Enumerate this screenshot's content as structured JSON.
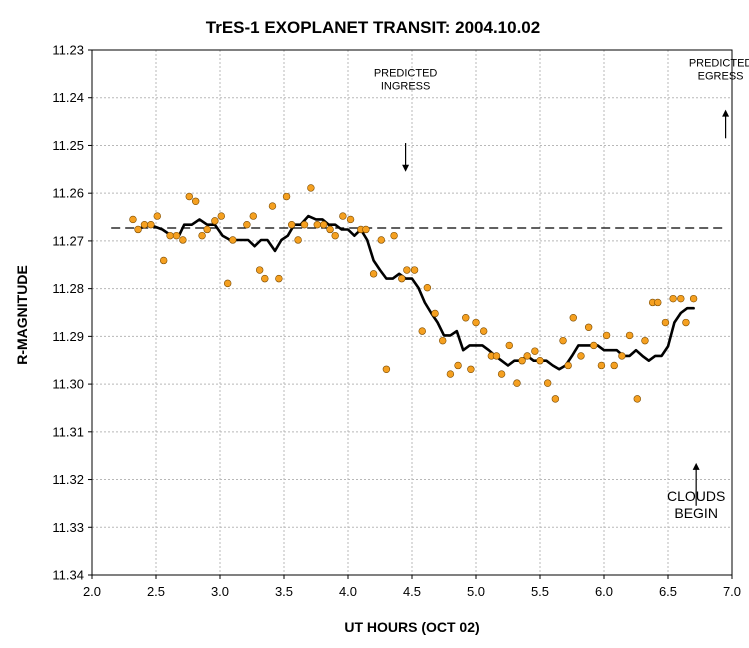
{
  "chart_data": {
    "type": "scatter",
    "title": "TrES-1 EXOPLANET TRANSIT: 2004.10.02",
    "xlabel": "UT HOURS (OCT 02)",
    "ylabel": "R-MAGNITUDE",
    "xlim": [
      2.0,
      7.0
    ],
    "ylim": [
      11.23,
      11.34
    ],
    "y_inverted": true,
    "grid": true,
    "x_ticks": [
      2.0,
      2.5,
      3.0,
      3.5,
      4.0,
      4.5,
      5.0,
      5.5,
      6.0,
      6.5,
      7.0
    ],
    "x_tick_labels": [
      "2.0",
      "2.5",
      "3.0",
      "3.5",
      "4.0",
      "4.5",
      "5.0",
      "5.5",
      "6.0",
      "6.5",
      "7.0"
    ],
    "y_ticks": [
      11.23,
      11.24,
      11.25,
      11.26,
      11.27,
      11.28,
      11.29,
      11.3,
      11.31,
      11.32,
      11.33,
      11.34
    ],
    "y_tick_labels": [
      "11.23",
      "11.24",
      "11.25",
      "11.26",
      "11.27",
      "11.28",
      "11.29",
      "11.30",
      "11.31",
      "11.32",
      "11.33",
      "11.34"
    ],
    "colors": {
      "points": "#f5a020",
      "point_edge": "#7a4a00",
      "smooth_line": "#000000",
      "baseline": "#000000",
      "grid": "#b8b8b8"
    },
    "series": [
      {
        "type": "scatter",
        "x": [
          2.32,
          2.36,
          2.41,
          2.46,
          2.51,
          2.56,
          2.61,
          2.66,
          2.71,
          2.76,
          2.81,
          2.86,
          2.9,
          2.96,
          3.01,
          3.06,
          3.1,
          3.21,
          3.26,
          3.31,
          3.35,
          3.41,
          3.46,
          3.52,
          3.56,
          3.61,
          3.66,
          3.71,
          3.76,
          3.81,
          3.86,
          3.9,
          3.96,
          4.02,
          4.1,
          4.14,
          4.2,
          4.26,
          4.3,
          4.36,
          4.42,
          4.46,
          4.52,
          4.58,
          4.62,
          4.68,
          4.74,
          4.8,
          4.86,
          4.92,
          4.96,
          5.0,
          5.06,
          5.12,
          5.16,
          5.2,
          5.26,
          5.32,
          5.36,
          5.4,
          5.46,
          5.5,
          5.56,
          5.62,
          5.68,
          5.72,
          5.76,
          5.82,
          5.88,
          5.92,
          5.98,
          6.02,
          6.08,
          6.14,
          6.2,
          6.26,
          6.32,
          6.38,
          6.42,
          6.48,
          6.54,
          6.6,
          6.64,
          6.7
        ],
        "y": [
          11.2655,
          11.2676,
          11.2666,
          11.2666,
          11.2648,
          11.2741,
          11.2689,
          11.2689,
          11.2698,
          11.2607,
          11.2617,
          11.2689,
          11.2676,
          11.2658,
          11.2648,
          11.2789,
          11.2698,
          11.2666,
          11.2648,
          11.2761,
          11.2779,
          11.2627,
          11.2779,
          11.2607,
          11.2666,
          11.2698,
          11.2666,
          11.2589,
          11.2666,
          11.2666,
          11.2676,
          11.2689,
          11.2648,
          11.2655,
          11.2676,
          11.2676,
          11.2769,
          11.2698,
          11.2969,
          11.2689,
          11.2779,
          11.2761,
          11.2761,
          11.2889,
          11.2798,
          11.2852,
          11.2909,
          11.2979,
          11.2961,
          11.2861,
          11.2969,
          11.2871,
          11.2889,
          11.2941,
          11.2941,
          11.2979,
          11.2919,
          11.2998,
          11.2951,
          11.2941,
          11.2931,
          11.2951,
          11.2998,
          11.3031,
          11.2909,
          11.2961,
          11.2861,
          11.2941,
          11.2881,
          11.2919,
          11.2961,
          11.2898,
          11.2961,
          11.2941,
          11.2898,
          11.3031,
          11.2909,
          11.2829,
          11.2829,
          11.2871,
          11.2821,
          11.2821,
          11.2871,
          11.2821
        ]
      },
      {
        "type": "line",
        "x": [
          2.35,
          2.45,
          2.55,
          2.62,
          2.68,
          2.72,
          2.78,
          2.84,
          2.9,
          2.96,
          3.02,
          3.08,
          3.16,
          3.22,
          3.27,
          3.32,
          3.37,
          3.43,
          3.48,
          3.53,
          3.58,
          3.63,
          3.69,
          3.75,
          3.8,
          3.85,
          3.9,
          3.95,
          4.0,
          4.05,
          4.1,
          4.15,
          4.2,
          4.25,
          4.3,
          4.35,
          4.4,
          4.45,
          4.5,
          4.55,
          4.6,
          4.65,
          4.7,
          4.75,
          4.8,
          4.85,
          4.9,
          4.95,
          5.0,
          5.05,
          5.1,
          5.15,
          5.2,
          5.25,
          5.3,
          5.35,
          5.4,
          5.45,
          5.5,
          5.55,
          5.6,
          5.65,
          5.7,
          5.75,
          5.8,
          5.85,
          5.9,
          5.95,
          6.0,
          6.05,
          6.1,
          6.15,
          6.2,
          6.25,
          6.3,
          6.35,
          6.4,
          6.45,
          6.5,
          6.55,
          6.6,
          6.65,
          6.7
        ],
        "y": [
          11.2676,
          11.2666,
          11.2676,
          11.2689,
          11.2689,
          11.2666,
          11.2666,
          11.2655,
          11.2666,
          11.2666,
          11.2689,
          11.2698,
          11.2698,
          11.2698,
          11.2711,
          11.2698,
          11.2698,
          11.2721,
          11.2698,
          11.2689,
          11.2666,
          11.2666,
          11.2648,
          11.2655,
          11.2655,
          11.2666,
          11.2666,
          11.2676,
          11.2676,
          11.2689,
          11.2676,
          11.2698,
          11.2741,
          11.2761,
          11.2779,
          11.2779,
          11.2769,
          11.2779,
          11.2779,
          11.2798,
          11.2829,
          11.2851,
          11.2871,
          11.2898,
          11.2898,
          11.2889,
          11.2929,
          11.2919,
          11.2919,
          11.2919,
          11.2929,
          11.2941,
          11.2951,
          11.2961,
          11.2951,
          11.2951,
          11.2941,
          11.2951,
          11.2951,
          11.2951,
          11.2961,
          11.2969,
          11.2961,
          11.2941,
          11.2919,
          11.2919,
          11.2919,
          11.2919,
          11.2929,
          11.2929,
          11.2929,
          11.2941,
          11.2941,
          11.2929,
          11.2941,
          11.2951,
          11.2941,
          11.2941,
          11.2921,
          11.2871,
          11.2851,
          11.2841,
          11.2841
        ]
      },
      {
        "type": "hline",
        "y": 11.2673,
        "x": [
          2.15,
          6.95
        ],
        "style": "dashed"
      }
    ],
    "annotations": [
      {
        "text_lines": [
          "PREDICTED",
          "INGRESS"
        ],
        "x": 4.45,
        "y": 11.2355,
        "arrow_from": 11.2495,
        "arrow_to": 11.2555,
        "size": "small",
        "align": "center"
      },
      {
        "text_lines": [
          "PREDICTED",
          "EGRESS"
        ],
        "x": 6.95,
        "y": 11.2335,
        "arrow_from": 11.2485,
        "arrow_to": 11.2425,
        "size": "small",
        "align": "center"
      },
      {
        "text_lines": [
          "CLOUDS",
          "BEGIN"
        ],
        "x": 6.72,
        "y": 11.3245,
        "arrow_from": 11.3255,
        "arrow_to": 11.3165,
        "size": "large",
        "align": "center"
      }
    ]
  }
}
